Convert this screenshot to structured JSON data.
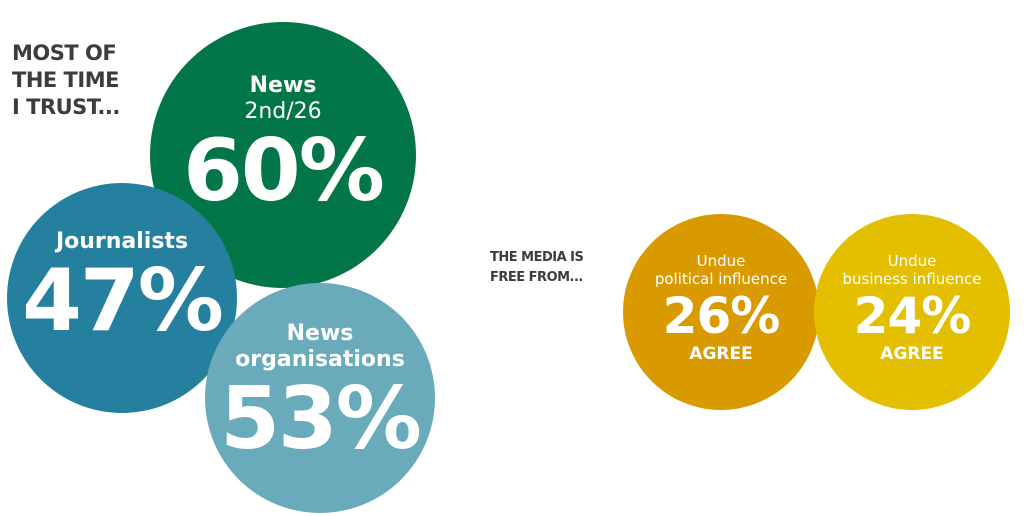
{
  "trust_heading": [
    "MOST OF",
    "THE TIME",
    "I TRUST..."
  ],
  "media_heading": [
    "THE MEDIA IS",
    "FREE FROM..."
  ],
  "colors": {
    "news": "#037649",
    "journalists": "#2580a0",
    "news_organisations": "#6aabbb",
    "political": "#d99a00",
    "business": "#e3bf00",
    "heading": "#3d3d3d"
  },
  "bubbles": {
    "news": {
      "label": "News",
      "rank": "2nd/26",
      "value": "60%"
    },
    "journalists": {
      "label": "Journalists",
      "value": "47%"
    },
    "news_organisations": {
      "label_1": "News",
      "label_2": "organisations",
      "value": "53%"
    },
    "political": {
      "label_1": "Undue",
      "label_2": "political influence",
      "value": "26%",
      "note": "AGREE"
    },
    "business": {
      "label_1": "Undue",
      "label_2": "business influence",
      "value": "24%",
      "note": "AGREE"
    }
  },
  "chart_data": {
    "type": "bubble",
    "groups": [
      {
        "heading": "MOST OF THE TIME I TRUST...",
        "categories": [
          "News",
          "Journalists",
          "News organisations"
        ],
        "values": [
          60,
          47,
          53
        ],
        "unit": "%"
      },
      {
        "heading": "THE MEDIA IS FREE FROM...",
        "categories": [
          "Undue political influence",
          "Undue business influence"
        ],
        "values": [
          26,
          24
        ],
        "unit": "% agree"
      }
    ]
  }
}
